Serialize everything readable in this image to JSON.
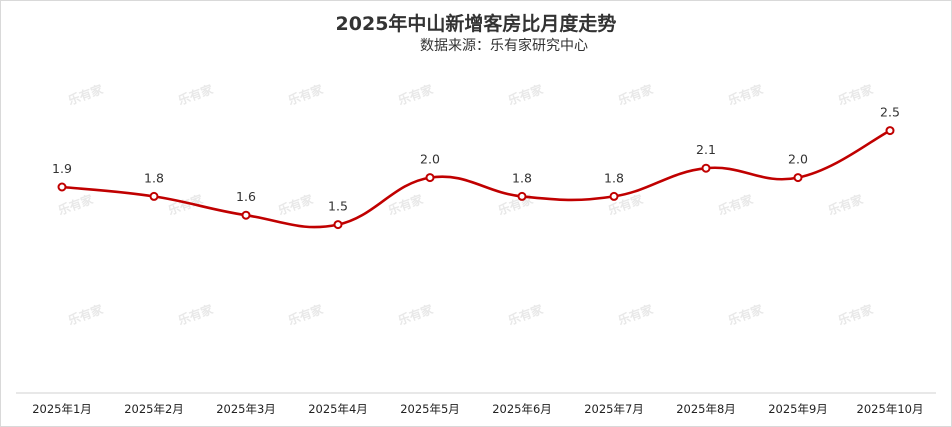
{
  "chart_data": {
    "type": "line",
    "title": "2025年中山新增客房比月度走势",
    "subtitle": "数据来源：乐有家研究中心",
    "watermark": "乐有家",
    "categories": [
      "2025年1月",
      "2025年2月",
      "2025年3月",
      "2025年4月",
      "2025年5月",
      "2025年6月",
      "2025年7月",
      "2025年8月",
      "2025年9月",
      "2025年10月"
    ],
    "series": [
      {
        "values": [
          1.9,
          1.8,
          1.6,
          1.5,
          2.0,
          1.8,
          1.8,
          2.1,
          2.0,
          2.5
        ]
      }
    ],
    "data_labels": [
      "1.9",
      "1.8",
      "1.6",
      "1.5",
      "2.0",
      "1.8",
      "1.8",
      "2.1",
      "2.0",
      "2.5"
    ],
    "grid": false,
    "legend": "none",
    "line_color": "#c00000"
  }
}
